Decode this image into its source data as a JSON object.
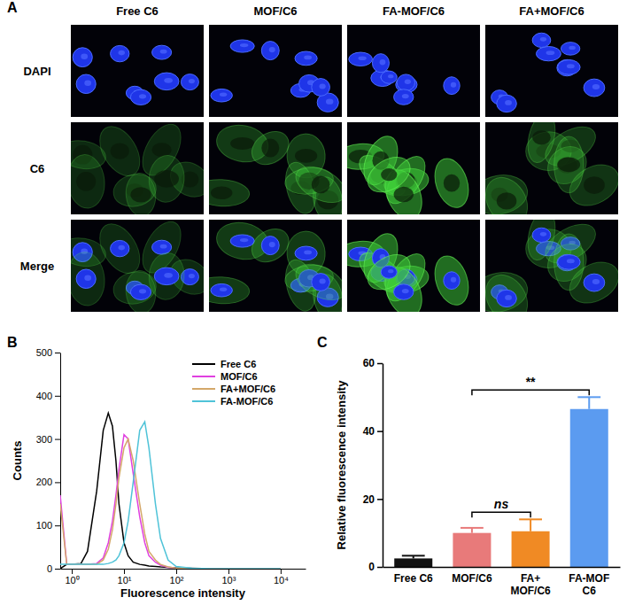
{
  "panel_labels": [
    "A",
    "B",
    "C"
  ],
  "micrographs": {
    "columns": [
      "Free C6",
      "MOF/C6",
      "FA-MOF/C6",
      "FA+MOF/C6"
    ],
    "rows": [
      "DAPI",
      "C6",
      "Merge"
    ]
  },
  "chart_data": [
    {
      "type": "line",
      "x_label": "Fluorescence intensity",
      "y_label": "Counts",
      "log": "x",
      "grid": false,
      "legend": "upper right",
      "xlim": [
        0.6,
        30000
      ],
      "xticks": [
        {
          "value": 1,
          "label": "10⁰"
        },
        {
          "value": 10,
          "label": "10¹"
        },
        {
          "value": 100,
          "label": "10²"
        },
        {
          "value": 1000,
          "label": "10³"
        },
        {
          "value": 10000,
          "label": "10⁴"
        }
      ],
      "ylim": [
        0,
        500
      ],
      "yticks": [
        0,
        100,
        200,
        300,
        400,
        500
      ],
      "x": [
        0.6,
        0.8,
        1,
        1.5,
        2,
        3,
        4,
        5,
        6,
        7,
        8,
        10,
        12,
        15,
        20,
        25,
        30,
        40,
        50,
        70,
        100,
        200,
        500,
        1000,
        5000,
        10000
      ],
      "series": [
        {
          "name": "Free C6",
          "color": "#000000",
          "values": [
            0,
            10,
            10,
            12,
            40,
            180,
            320,
            360,
            330,
            250,
            150,
            60,
            30,
            15,
            10,
            8,
            6,
            5,
            4,
            3,
            2,
            1,
            0,
            0,
            0,
            0
          ]
        },
        {
          "name": "MOF/C6",
          "color": "#e040e0",
          "values": [
            170,
            10,
            10,
            10,
            10,
            12,
            25,
            60,
            110,
            170,
            230,
            310,
            300,
            220,
            120,
            60,
            30,
            15,
            8,
            3,
            1,
            0,
            0,
            0,
            0,
            0
          ]
        },
        {
          "name": "FA+MOF/C6",
          "color": "#d4a86a",
          "values": [
            150,
            10,
            10,
            10,
            10,
            10,
            20,
            45,
            90,
            150,
            210,
            280,
            300,
            250,
            150,
            80,
            40,
            20,
            10,
            4,
            1,
            0,
            0,
            0,
            0,
            0
          ]
        },
        {
          "name": "FA-MOF/C6",
          "color": "#4fc3d8",
          "values": [
            10,
            10,
            10,
            10,
            10,
            10,
            10,
            12,
            15,
            20,
            30,
            60,
            110,
            200,
            320,
            340,
            280,
            150,
            70,
            20,
            5,
            1,
            0,
            0,
            0,
            0
          ]
        }
      ]
    },
    {
      "type": "bar",
      "y_label": "Relative fluorescence intensity",
      "grid": false,
      "categories": [
        "Free C6",
        "MOF/C6",
        "FA+\nMOF/C6",
        "FA-MOF\nC6"
      ],
      "values": [
        2.5,
        10,
        10.5,
        46.5
      ],
      "errors": [
        0.8,
        1.5,
        3.5,
        3.5
      ],
      "colors": [
        "#111111",
        "#e87a7a",
        "#f08a24",
        "#5b9bf0"
      ],
      "ylim": [
        0,
        60
      ],
      "yticks": [
        0,
        20,
        40,
        60
      ],
      "comparisons": [
        {
          "label": "ns",
          "pair": [
            1,
            2
          ]
        },
        {
          "label": "**",
          "pair": [
            1,
            3
          ]
        }
      ]
    }
  ]
}
